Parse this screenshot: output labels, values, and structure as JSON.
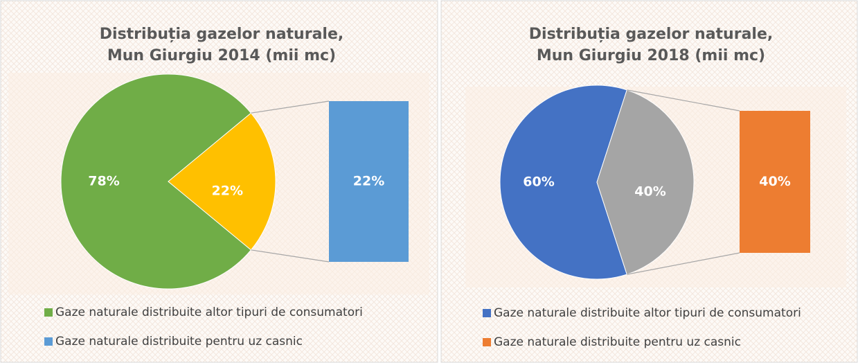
{
  "chart_data": [
    {
      "type": "pie-of-bar",
      "title": "Distribuția gazelor naturale, Mun Giurgiu 2014 (mii mc)",
      "categories": [
        "Gaze naturale distribuite altor tipuri de consumatori",
        "Gaze naturale distribuite pentru uz casnic"
      ],
      "values": [
        78,
        22
      ],
      "value_labels": [
        "78%",
        "22%"
      ],
      "colors": [
        "#70ad47",
        "#5b9bd5"
      ],
      "split_slice_color": "#ffc000"
    },
    {
      "type": "pie-of-bar",
      "title": "Distribuția gazelor naturale, Mun Giurgiu 2018 (mii mc)",
      "categories": [
        "Gaze naturale distribuite altor tipuri de consumatori",
        "Gaze naturale distribuite pentru uz casnic"
      ],
      "values": [
        60,
        40
      ],
      "value_labels": [
        "60%",
        "40%"
      ],
      "colors": [
        "#4472c4",
        "#ed7d31"
      ],
      "split_slice_color": "#a5a5a5"
    }
  ]
}
